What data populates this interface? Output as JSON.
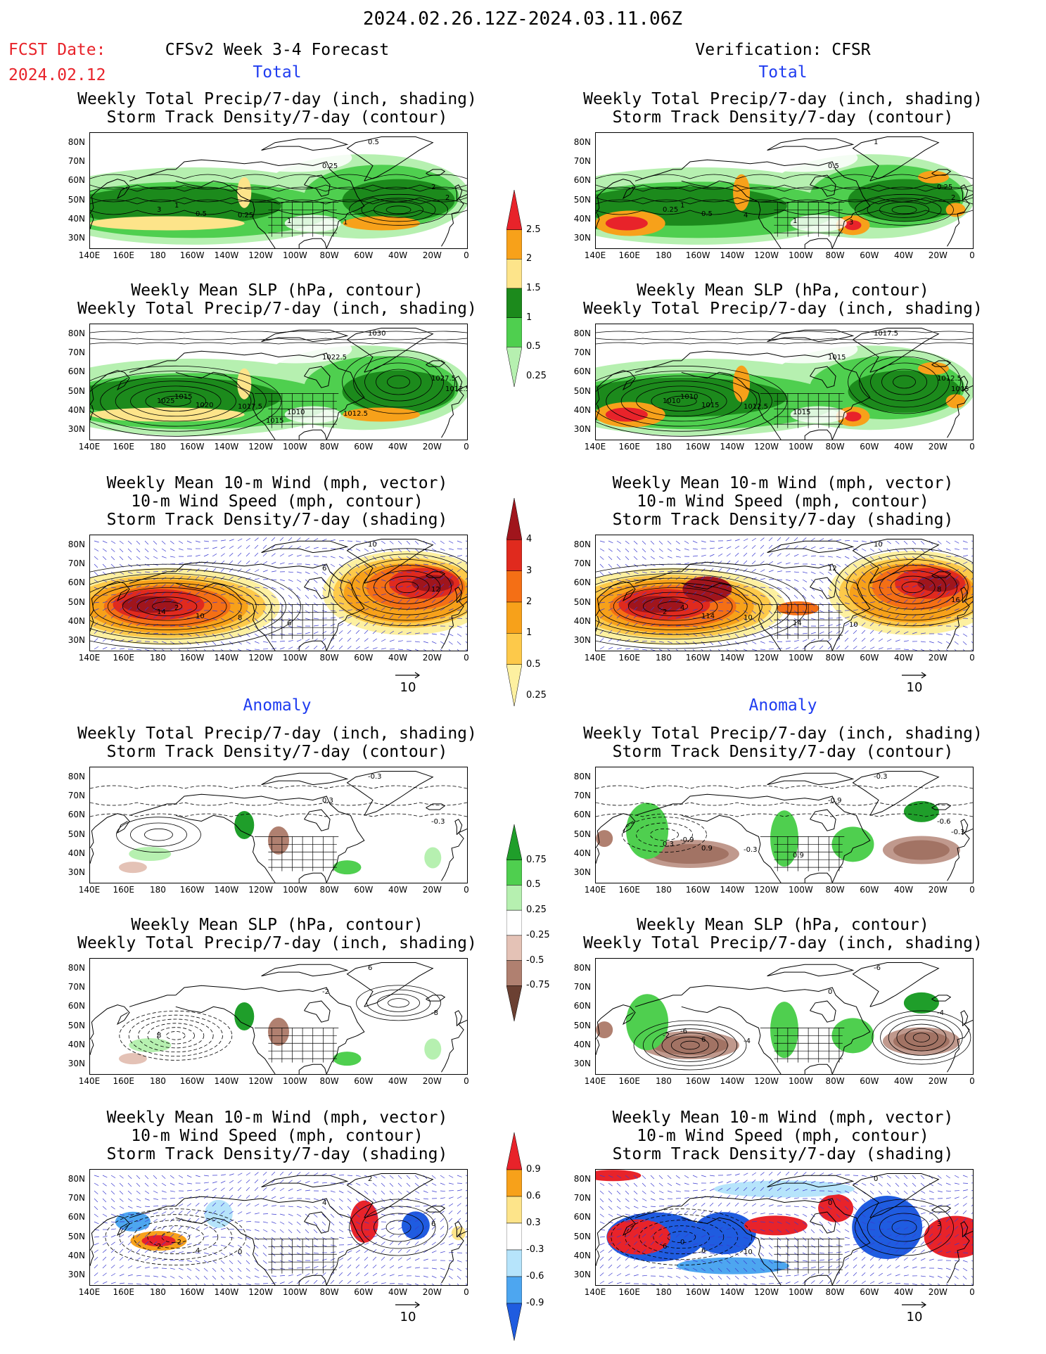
{
  "header": {
    "date_range": "2024.02.26.12Z-2024.03.11.06Z",
    "fcst_label": "FCST Date:",
    "fcst_date": "2024.02.12",
    "left_title": "CFSv2 Week 3-4 Forecast",
    "right_title": "Verification: CFSR"
  },
  "sections": {
    "total": "Total",
    "anomaly": "Anomaly"
  },
  "panel_titles": {
    "precip_storm": [
      "Weekly Total Precip/7-day (inch, shading)",
      "Storm Track Density/7-day (contour)"
    ],
    "slp_precip": [
      "Weekly Mean SLP (hPa, contour)",
      "Weekly Total Precip/7-day (inch, shading)"
    ],
    "wind_storm": [
      "Weekly Mean 10-m Wind (mph, vector)",
      "10-m Wind Speed (mph, contour)",
      "Storm Track Density/7-day (shading)"
    ]
  },
  "axes": {
    "lat_ticks": [
      "80N",
      "70N",
      "60N",
      "50N",
      "40N",
      "30N"
    ],
    "lon_ticks": [
      "140E",
      "160E",
      "180",
      "160W",
      "140W",
      "120W",
      "100W",
      "80W",
      "60W",
      "40W",
      "20W",
      "0"
    ]
  },
  "vector_ref": "10",
  "colorbars": {
    "precip_total": {
      "labels": [
        "2.5",
        "2",
        "1.5",
        "1",
        "0.5",
        "0.25"
      ],
      "colors": [
        "#e8232a",
        "#f7a11a",
        "#fde48a",
        "#1c8a1c",
        "#4fcf4f",
        "#b6f0b0"
      ]
    },
    "storm_total": {
      "labels": [
        "4",
        "3",
        "2",
        "1",
        "0.5",
        "0.25"
      ],
      "colors": [
        "#a0151c",
        "#e02a1e",
        "#f46f15",
        "#f7a11a",
        "#fdc94a",
        "#fdf0a0"
      ]
    },
    "precip_anom": {
      "labels": [
        "0.75",
        "0.5",
        "0.25",
        "-0.25",
        "-0.5",
        "-0.75"
      ],
      "colors": [
        "#1f9e2a",
        "#4fcf4f",
        "#b6f0b0",
        "#ffffff",
        "#e4c2b6",
        "#b08070",
        "#6b4032"
      ]
    },
    "storm_anom": {
      "labels": [
        "0.9",
        "0.6",
        "0.3",
        "-0.3",
        "-0.6",
        "-0.9"
      ],
      "colors": [
        "#e8232a",
        "#f7a11a",
        "#fde48a",
        "#ffffff",
        "#b6e4fb",
        "#4da6f0",
        "#1f5ce0"
      ]
    }
  },
  "contour_labels": {
    "p1l": [
      "0.5",
      "0.25",
      "2",
      "3",
      "1",
      "0.5",
      "0.25",
      "1",
      "2",
      "1"
    ],
    "p1r": [
      "1",
      "0.5",
      "0.25",
      "0.25",
      "1",
      "0.5",
      "4",
      "1",
      "2",
      "3"
    ],
    "p2l": [
      "1030",
      "1022.5",
      "1027.5",
      "1025",
      "1015",
      "1020",
      "1017.5",
      "1010",
      "1012.5",
      "1012.5",
      "1015"
    ],
    "p2r": [
      "1017.5",
      "1015",
      "1012.5",
      "1010",
      "1010",
      "1015",
      "1012.5",
      "1015",
      "1005"
    ],
    "p3l": [
      "10",
      "6",
      "12",
      "14",
      "2",
      "10",
      "8",
      "6"
    ],
    "p3r": [
      "10",
      "12",
      "8",
      "2",
      "4",
      "114",
      "10",
      "14",
      "16",
      "10"
    ],
    "p4l": [
      "-0.3",
      "0.3",
      "-0.3"
    ],
    "p4r": [
      "-0.3",
      "-0.9",
      "-0.6",
      "0.3",
      "-0.9",
      "0.9",
      "-0.3",
      "0.9",
      "-0.3"
    ],
    "p5l": [
      "6",
      "-2",
      "-8",
      "8"
    ],
    "p5r": [
      "-6",
      "0",
      "-4",
      "-2",
      "-6",
      "6",
      "-4"
    ],
    "p6l": [
      "2",
      "4",
      "6",
      "2",
      "-2",
      "4",
      "0"
    ],
    "p6r": [
      "0",
      "0",
      "3",
      "6",
      "0",
      "6",
      "10"
    ]
  }
}
